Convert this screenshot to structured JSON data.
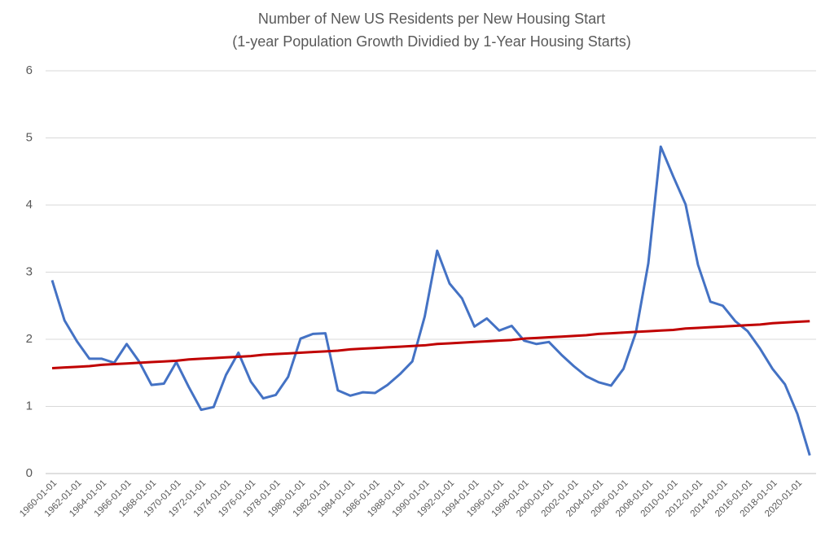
{
  "chart_data": {
    "type": "line",
    "title": "Number of New US Residents per New Housing Start",
    "subtitle": "(1-year Population Growth Dividied by 1-Year Housing Starts)",
    "categories": [
      "1960-01-01",
      null,
      "1962-01-01",
      null,
      "1964-01-01",
      null,
      "1966-01-01",
      null,
      "1968-01-01",
      null,
      "1970-01-01",
      null,
      "1972-01-01",
      null,
      "1974-01-01",
      null,
      "1976-01-01",
      null,
      "1978-01-01",
      null,
      "1980-01-01",
      null,
      "1982-01-01",
      null,
      "1984-01-01",
      null,
      "1986-01-01",
      null,
      "1988-01-01",
      null,
      "1990-01-01",
      null,
      "1992-01-01",
      null,
      "1994-01-01",
      null,
      "1996-01-01",
      null,
      "1998-01-01",
      null,
      "2000-01-01",
      null,
      "2002-01-01",
      null,
      "2004-01-01",
      null,
      "2006-01-01",
      null,
      "2008-01-01",
      null,
      "2010-01-01",
      null,
      "2012-01-01",
      null,
      "2014-01-01",
      null,
      "2016-01-01",
      null,
      "2018-01-01",
      null,
      "2020-01-01",
      null
    ],
    "series": [
      {
        "color": "#4472c4",
        "values": [
          2.88,
          2.28,
          1.97,
          1.71,
          1.71,
          1.65,
          1.93,
          1.67,
          1.32,
          1.34,
          1.66,
          1.29,
          0.95,
          0.99,
          1.47,
          1.8,
          1.37,
          1.12,
          1.17,
          1.44,
          2.01,
          2.08,
          2.09,
          1.24,
          1.16,
          1.21,
          1.2,
          1.32,
          1.48,
          1.67,
          2.34,
          3.32,
          2.83,
          2.61,
          2.19,
          2.31,
          2.13,
          2.2,
          1.98,
          1.93,
          1.96,
          1.77,
          1.6,
          1.45,
          1.36,
          1.31,
          1.56,
          2.1,
          3.13,
          4.87,
          4.43,
          4.01,
          3.11,
          2.56,
          2.5,
          2.27,
          2.12,
          1.86,
          1.56,
          1.33,
          0.89,
          0.27
        ]
      },
      {
        "color": "#c00000",
        "values": [
          1.57,
          1.58,
          1.59,
          1.6,
          1.62,
          1.63,
          1.64,
          1.65,
          1.66,
          1.67,
          1.68,
          1.7,
          1.71,
          1.72,
          1.73,
          1.74,
          1.75,
          1.77,
          1.78,
          1.79,
          1.8,
          1.81,
          1.82,
          1.83,
          1.85,
          1.86,
          1.87,
          1.88,
          1.89,
          1.9,
          1.91,
          1.93,
          1.94,
          1.95,
          1.96,
          1.97,
          1.98,
          1.99,
          2.01,
          2.02,
          2.03,
          2.04,
          2.05,
          2.06,
          2.08,
          2.09,
          2.1,
          2.11,
          2.12,
          2.13,
          2.14,
          2.16,
          2.17,
          2.18,
          2.19,
          2.2,
          2.21,
          2.22,
          2.24,
          2.25,
          2.26,
          2.27
        ]
      }
    ],
    "ylim": [
      0,
      6
    ],
    "yticks": [
      0,
      1,
      2,
      3,
      4,
      5,
      6
    ],
    "grid": true
  }
}
